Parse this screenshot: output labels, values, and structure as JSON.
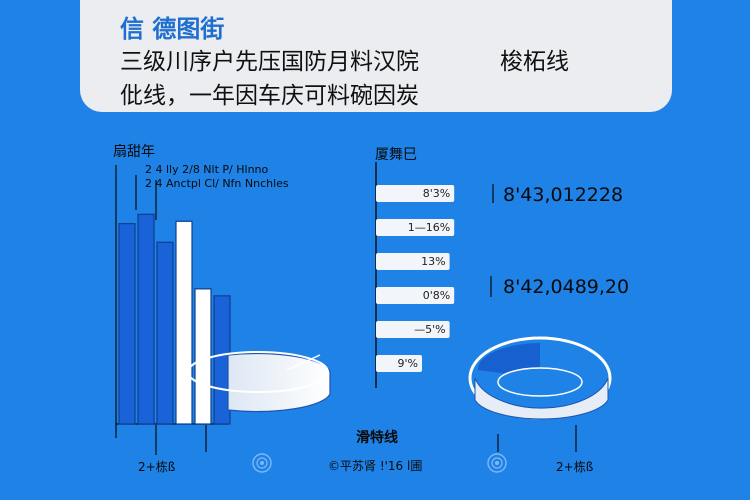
{
  "header": {
    "title": "信 德图街",
    "line1": "三级川序户先压国防月料汉院",
    "line1_right": "梭柘线",
    "line2": "仳线，一年因车庆可料碗因炭"
  },
  "left_chart": {
    "title": "扇甜年",
    "legend": [
      "2 4 lly  2/8 Nlt P/ Hlnno",
      "2 4 Anctpl Cl/ Nfn Nnchles"
    ]
  },
  "right_chart": {
    "title": "厦舞巳",
    "big_numbers": [
      "8'43,012228",
      "8'42,0489,20"
    ]
  },
  "chart_data": [
    {
      "type": "bar",
      "title": "扇甜年",
      "orientation": "vertical",
      "values": [
        86,
        90,
        78,
        87,
        58,
        55
      ],
      "colors": [
        "#1a62d8",
        "#1a62d8",
        "#1a62d8",
        "#ffffff",
        "#ffffff",
        "#1a62d8"
      ],
      "ylim": [
        0,
        100
      ]
    },
    {
      "type": "bar",
      "title": "厦舞巳",
      "orientation": "horizontal",
      "categories": [
        "8'3%",
        "1—16%",
        "13%",
        "0'8%",
        "—5'%",
        "9'%"
      ],
      "values": [
        34,
        34,
        32,
        34,
        32,
        20
      ],
      "xlim": [
        0,
        100
      ]
    }
  ],
  "footer": {
    "section_label": "滑特线",
    "label_left": "2+栋ß",
    "label_center": "©平苏肾 !'16 l圃",
    "label_right": "2+栋ß"
  }
}
